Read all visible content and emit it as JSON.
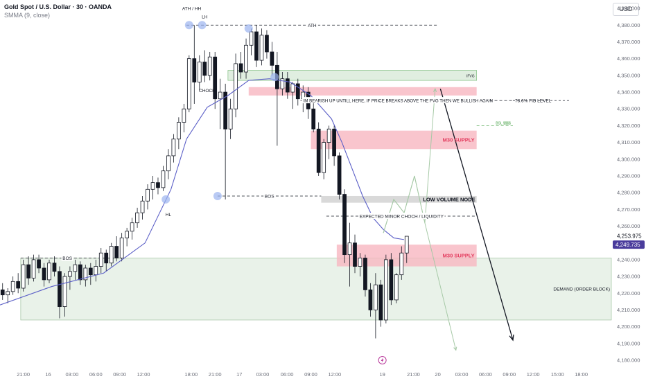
{
  "header": {
    "symbol_title": "Gold Spot / U.S. Dollar · 30 · OANDA",
    "indicator": "SMMA (9, close)"
  },
  "currency_button": "USD",
  "colors": {
    "up": "#ffffff",
    "down": "#131722",
    "smma": "#5b5fc7",
    "supply": "#f7b6c0",
    "demand": "#e1eee1",
    "fvg": "#d8ead8",
    "low_volume": "#cfcfcf",
    "price_label_bg": "#4a3c9c",
    "projection": "#a6c9a6"
  },
  "chart_data": {
    "type": "candlestick",
    "y_axis": {
      "min": 4180,
      "max": 4395,
      "ticks": [
        4390,
        4380,
        4370,
        4360,
        4350,
        4340,
        4330,
        4320,
        4310,
        4300,
        4290,
        4280,
        4270,
        4260,
        4250,
        4240,
        4230,
        4220,
        4210,
        4200,
        4190,
        4180
      ],
      "tick_labels": [
        "4,390.000",
        "4,380.000",
        "4,370.000",
        "4,360.000",
        "4,350.000",
        "4,340.000",
        "4,330.000",
        "4,320.000",
        "4,310.000",
        "4,300.000",
        "4,290.000",
        "4,280.000",
        "4,270.000",
        "4,260.000",
        "4,250.000",
        "4,240.000",
        "4,230.000",
        "4,220.000",
        "4,210.000",
        "4,200.000",
        "4,190.000",
        "4,180.000"
      ]
    },
    "x_axis": {
      "min": 0,
      "max": 118,
      "ticks": [
        {
          "bar": 4.5,
          "label": "21:00"
        },
        {
          "bar": 9.3,
          "label": "16"
        },
        {
          "bar": 13.9,
          "label": "03:00"
        },
        {
          "bar": 18.5,
          "label": "06:00"
        },
        {
          "bar": 23.1,
          "label": "09:00"
        },
        {
          "bar": 27.7,
          "label": "12:00"
        },
        {
          "bar": 36.9,
          "label": "18:00"
        },
        {
          "bar": 41.5,
          "label": "21:00"
        },
        {
          "bar": 46.2,
          "label": "17"
        },
        {
          "bar": 50.7,
          "label": "03:00"
        },
        {
          "bar": 55.4,
          "label": "06:00"
        },
        {
          "bar": 60.0,
          "label": "09:00"
        },
        {
          "bar": 64.6,
          "label": "12:00"
        },
        {
          "bar": 73.8,
          "label": "19"
        },
        {
          "bar": 79.8,
          "label": "21:00"
        },
        {
          "bar": 84.5,
          "label": "20"
        },
        {
          "bar": 89.1,
          "label": "03:00"
        },
        {
          "bar": 93.7,
          "label": "06:00"
        },
        {
          "bar": 98.3,
          "label": "09:00"
        },
        {
          "bar": 102.9,
          "label": "12:00"
        },
        {
          "bar": 107.6,
          "label": "15:00"
        },
        {
          "bar": 112.2,
          "label": "18:00"
        }
      ]
    },
    "candles": [
      [
        4222,
        4226,
        4216,
        4219
      ],
      [
        4219,
        4223,
        4214,
        4221
      ],
      [
        4221,
        4230,
        4219,
        4227
      ],
      [
        4227,
        4232,
        4220,
        4223
      ],
      [
        4223,
        4240,
        4221,
        4237
      ],
      [
        4237,
        4242,
        4225,
        4229
      ],
      [
        4229,
        4243,
        4227,
        4240
      ],
      [
        4240,
        4243,
        4232,
        4235
      ],
      [
        4235,
        4238,
        4224,
        4228
      ],
      [
        4228,
        4240,
        4226,
        4238
      ],
      [
        4238,
        4242,
        4230,
        4233
      ],
      [
        4233,
        4236,
        4205,
        4212
      ],
      [
        4212,
        4232,
        4206,
        4230
      ],
      [
        4230,
        4236,
        4222,
        4233
      ],
      [
        4233,
        4240,
        4228,
        4237
      ],
      [
        4237,
        4239,
        4225,
        4228
      ],
      [
        4228,
        4237,
        4224,
        4235
      ],
      [
        4235,
        4238,
        4225,
        4231
      ],
      [
        4231,
        4240,
        4227,
        4236
      ],
      [
        4236,
        4247,
        4232,
        4244
      ],
      [
        4244,
        4246,
        4233,
        4238
      ],
      [
        4238,
        4250,
        4236,
        4248
      ],
      [
        4248,
        4254,
        4239,
        4241
      ],
      [
        4241,
        4256,
        4239,
        4253
      ],
      [
        4253,
        4259,
        4248,
        4257
      ],
      [
        4257,
        4265,
        4252,
        4262
      ],
      [
        4262,
        4271,
        4259,
        4268
      ],
      [
        4268,
        4278,
        4264,
        4275
      ],
      [
        4275,
        4285,
        4270,
        4282
      ],
      [
        4282,
        4290,
        4276,
        4286
      ],
      [
        4286,
        4289,
        4279,
        4283
      ],
      [
        4283,
        4296,
        4281,
        4293
      ],
      [
        4293,
        4306,
        4288,
        4302
      ],
      [
        4302,
        4315,
        4298,
        4312
      ],
      [
        4312,
        4325,
        4306,
        4322
      ],
      [
        4322,
        4333,
        4316,
        4330
      ],
      [
        4330,
        4362,
        4328,
        4360
      ],
      [
        4360,
        4380,
        4333,
        4346
      ],
      [
        4346,
        4362,
        4341,
        4358
      ],
      [
        4358,
        4365,
        4346,
        4350
      ],
      [
        4350,
        4364,
        4347,
        4361
      ],
      [
        4361,
        4364,
        4330,
        4336
      ],
      [
        4336,
        4348,
        4318,
        4340
      ],
      [
        4340,
        4345,
        4276,
        4318
      ],
      [
        4318,
        4336,
        4312,
        4330
      ],
      [
        4330,
        4363,
        4325,
        4357
      ],
      [
        4357,
        4364,
        4348,
        4352
      ],
      [
        4352,
        4372,
        4348,
        4368
      ],
      [
        4368,
        4378,
        4362,
        4376
      ],
      [
        4376,
        4380,
        4355,
        4359
      ],
      [
        4359,
        4378,
        4356,
        4374
      ],
      [
        4374,
        4377,
        4360,
        4364
      ],
      [
        4364,
        4370,
        4350,
        4356
      ],
      [
        4356,
        4364,
        4308,
        4342
      ],
      [
        4342,
        4352,
        4338,
        4348
      ],
      [
        4348,
        4352,
        4336,
        4340
      ],
      [
        4340,
        4346,
        4330,
        4345
      ],
      [
        4345,
        4348,
        4332,
        4336
      ],
      [
        4336,
        4344,
        4328,
        4340
      ],
      [
        4340,
        4343,
        4324,
        4330
      ],
      [
        4330,
        4334,
        4316,
        4318
      ],
      [
        4318,
        4322,
        4290,
        4292
      ],
      [
        4292,
        4312,
        4288,
        4310
      ],
      [
        4310,
        4320,
        4300,
        4318
      ],
      [
        4318,
        4320,
        4296,
        4302
      ],
      [
        4302,
        4304,
        4276,
        4279
      ],
      [
        4279,
        4282,
        4238,
        4243
      ],
      [
        4243,
        4262,
        4224,
        4250
      ],
      [
        4250,
        4255,
        4232,
        4236
      ],
      [
        4236,
        4244,
        4230,
        4241
      ],
      [
        4241,
        4243,
        4218,
        4222
      ],
      [
        4222,
        4226,
        4206,
        4210
      ],
      [
        4210,
        4232,
        4193,
        4225
      ],
      [
        4225,
        4228,
        4200,
        4204
      ],
      [
        4204,
        4243,
        4202,
        4240
      ],
      [
        4240,
        4244,
        4213,
        4216
      ],
      [
        4216,
        4232,
        4214,
        4231
      ],
      [
        4231,
        4248,
        4228,
        4244
      ],
      [
        4244,
        4254,
        4238,
        4254
      ]
    ],
    "smma": [
      [
        0,
        4213
      ],
      [
        10,
        4224
      ],
      [
        20,
        4232
      ],
      [
        28,
        4250
      ],
      [
        33,
        4282
      ],
      [
        36,
        4312
      ],
      [
        40,
        4331
      ],
      [
        44,
        4338
      ],
      [
        48,
        4347
      ],
      [
        52,
        4348
      ],
      [
        56,
        4346
      ],
      [
        60,
        4338
      ],
      [
        64,
        4324
      ],
      [
        66,
        4310
      ],
      [
        68,
        4294
      ],
      [
        70,
        4278
      ],
      [
        72,
        4265
      ],
      [
        74,
        4258
      ],
      [
        76,
        4253
      ],
      [
        78,
        4252
      ]
    ],
    "zones": [
      {
        "name": "demand-zone",
        "label": "DEMAND (ORDER BLOCK)",
        "x0": 4,
        "x1": 118,
        "y0": 4204,
        "y1": 4241,
        "fill": "demand"
      },
      {
        "name": "supply-zone-lower",
        "label": "M30 SUPPLY",
        "x0": 65,
        "x1": 92,
        "y0": 4236,
        "y1": 4249,
        "fill": "supply"
      },
      {
        "name": "supply-zone-upper",
        "label": "M30 SUPPLY",
        "x0": 60,
        "x1": 92,
        "y0": 4306,
        "y1": 4317,
        "fill": "supply"
      },
      {
        "name": "supply-zone-left",
        "label": "",
        "x0": 48,
        "x1": 92,
        "y0": 4338,
        "y1": 4343,
        "fill": "supply"
      },
      {
        "name": "fvg-zone",
        "label": "IFVG",
        "x0": 44,
        "x1": 92,
        "y0": 4347,
        "y1": 4353,
        "fill": "fvg"
      },
      {
        "name": "low-volume-node",
        "label": "LOW VOLUME NODE",
        "x0": 62,
        "x1": 92,
        "y0": 4274,
        "y1": 4278,
        "fill": "low_volume"
      }
    ],
    "levels": [
      {
        "name": "ath-line",
        "label": "ATH",
        "x0": 36,
        "x1": 84.5,
        "y": 4380
      },
      {
        "name": "bos-line-mid",
        "label": "BOS",
        "x0": 42,
        "x1": 62,
        "y": 4278
      },
      {
        "name": "bos-line-left",
        "label": "BOS",
        "x0": 4,
        "x1": 22,
        "y": 4241
      },
      {
        "name": "choch-line",
        "label": "EXPECTED MINOR CHOCH / LIQUIDITY",
        "x0": 63,
        "x1": 92,
        "y": 4266
      },
      {
        "name": "bearish-note-line",
        "label": "IM BEARISH UP UNTILL HERE, IF PRICE BREAKS ABOVE THE FVG THEN WE BULLISH AGAIN",
        "x0": 58,
        "x1": 99,
        "y": 4335
      },
      {
        "name": "fib-line",
        "label": "78.6% FIB LEVEL",
        "x0": 99,
        "x1": 110,
        "y": 4335
      },
      {
        "name": "ssl-line",
        "label": "BSL $$$$",
        "x0": 92,
        "x1": 99,
        "y": 4320
      }
    ],
    "annotations": [
      {
        "name": "ath-hh-label",
        "text": "ATH / HH",
        "x": 37,
        "y": 4389
      },
      {
        "name": "lh-label",
        "text": "LH",
        "x": 39.5,
        "y": 4384
      },
      {
        "name": "choch-label",
        "text": "CHOCH",
        "x": 40,
        "y": 4340
      },
      {
        "name": "hl-label",
        "text": "HL",
        "x": 32.5,
        "y": 4266
      }
    ],
    "markers": [
      {
        "name": "ath-marker",
        "x": 36.5,
        "y": 4380
      },
      {
        "name": "lh-marker",
        "x": 39,
        "y": 4380
      },
      {
        "name": "hh-marker",
        "x": 48,
        "y": 4378
      },
      {
        "name": "fvg-touch-marker",
        "x": 53,
        "y": 4349
      },
      {
        "name": "hl-marker",
        "x": 32,
        "y": 4276
      },
      {
        "name": "bos-marker",
        "x": 42,
        "y": 4278
      }
    ],
    "projections": [
      {
        "name": "projection-bullish",
        "points": [
          [
            74,
            4256
          ],
          [
            76,
            4276
          ],
          [
            78,
            4268
          ],
          [
            80,
            4290
          ],
          [
            82,
            4262
          ],
          [
            84,
            4342
          ]
        ]
      },
      {
        "name": "projection-bearish",
        "points": [
          [
            74,
            4256
          ],
          [
            76,
            4276
          ],
          [
            78,
            4268
          ],
          [
            80,
            4290
          ],
          [
            82,
            4262
          ],
          [
            88,
            4186
          ]
        ]
      }
    ],
    "arrow": {
      "name": "bearish-arrow",
      "from": [
        85,
        4342
      ],
      "to": [
        99,
        4192
      ]
    },
    "price_labels": [
      {
        "name": "last-price-text",
        "text": "4,253.975",
        "y": 4254
      },
      {
        "name": "current-price-tag",
        "text": "4,249.735",
        "y": 4249
      }
    ]
  }
}
